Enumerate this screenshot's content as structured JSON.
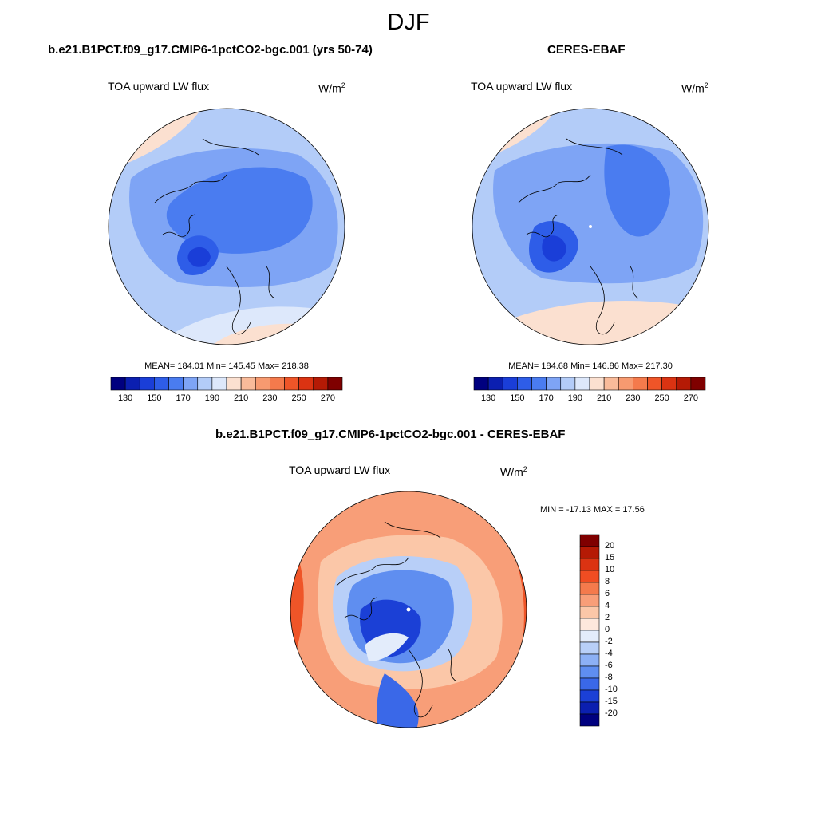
{
  "season": "DJF",
  "variable": "TOA upward LW flux",
  "unit_base": "W/m",
  "unit_exp": "2",
  "panels": [
    {
      "title": "b.e21.B1PCT.f09_g17.CMIP6-1pctCO2-bgc.001 (yrs 50-74)",
      "stats": "MEAN= 184.01  Min= 145.45  Max= 218.38"
    },
    {
      "title": "CERES-EBAF",
      "stats": "MEAN= 184.68  Min= 146.86  Max= 217.30"
    }
  ],
  "diff": {
    "title": "b.e21.B1PCT.f09_g17.CMIP6-1pctCO2-bgc.001 - CERES-EBAF",
    "minmax": "MIN = -17.13 MAX =  17.56"
  },
  "colorbar_abs": {
    "tick_labels": [
      "130",
      "150",
      "170",
      "190",
      "210",
      "230",
      "250",
      "270"
    ],
    "colors": [
      "#00007f",
      "#0b1fb0",
      "#1a3ed8",
      "#2e5de8",
      "#4a7cf0",
      "#7ea4f5",
      "#b3ccf8",
      "#dde8fb",
      "#fbe0d0",
      "#f9bb9a",
      "#f79a70",
      "#f47a4c",
      "#ef5528",
      "#db3312",
      "#b51a05",
      "#7f0000"
    ]
  },
  "colorbar_diff": {
    "tick_labels": [
      "20",
      "15",
      "10",
      "8",
      "6",
      "4",
      "2",
      "0",
      "-2",
      "-4",
      "-6",
      "-8",
      "-10",
      "-15",
      "-20"
    ],
    "colors": [
      "#7f0000",
      "#b51a05",
      "#db3312",
      "#f04d22",
      "#f47a4c",
      "#f89e78",
      "#fbc7a8",
      "#fde8dc",
      "#e3ecfb",
      "#b8cff8",
      "#8cb0f5",
      "#5f8ef0",
      "#3a68e8",
      "#1b40d6",
      "#0b1fb0",
      "#00007f"
    ]
  }
}
